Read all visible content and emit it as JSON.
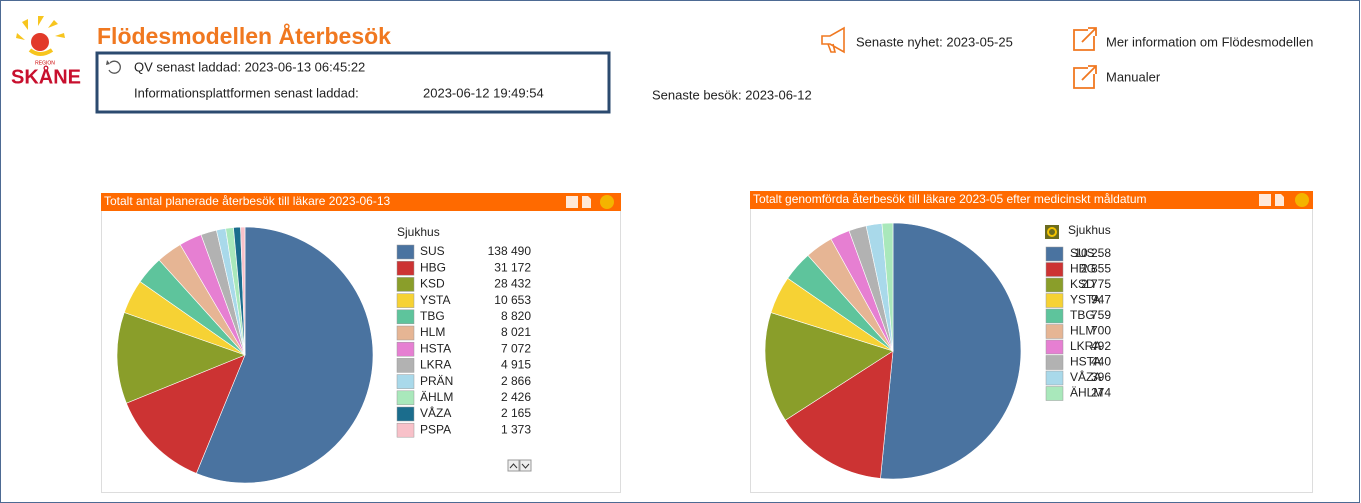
{
  "header": {
    "logo_small": "REGION",
    "logo": "SKÅNE",
    "title": "Flödesmodellen Återbesök",
    "qv_loaded": "QV senast laddad: 2023-06-13 06:45:22",
    "platform_label": "Informationsplattformen senast laddad:",
    "platform_date": "2023-06-12 19:49:54",
    "last_visit": "Senaste besök:  2023-06-12",
    "news": "Senaste nyhet: 2023-05-25",
    "more_info": "Mer information om Flödesmodellen",
    "manuals": "Manualer"
  },
  "chart_data": [
    {
      "type": "pie",
      "title": "Totalt antal planerade återbesök till läkare 2023-06-13",
      "legend_title": "Sjukhus",
      "categories": [
        "SUS",
        "HBG",
        "KSD",
        "YSTA",
        "TBG",
        "HLM",
        "HSTA",
        "LKRA",
        "PRÄN",
        "ÄHLM",
        "VÅZA",
        "PSPA"
      ],
      "values": [
        138490,
        31172,
        28432,
        10653,
        8820,
        8021,
        7072,
        4915,
        2866,
        2426,
        2165,
        1373
      ],
      "value_labels": [
        "138 490",
        "31 172",
        "28 432",
        "10 653",
        "8 820",
        "8 021",
        "7 072",
        "4 915",
        "2 866",
        "2 426",
        "2 165",
        "1 373"
      ],
      "colors": [
        "#4a73a0",
        "#cc3333",
        "#8a9e2a",
        "#f6d234",
        "#5ec49c",
        "#e6b594",
        "#e67fd2",
        "#b2b2b2",
        "#a9d9ea",
        "#a9e8bb",
        "#1b6d8d",
        "#f8c1c9"
      ]
    },
    {
      "type": "pie",
      "title": "Totalt genomförda återbesök till läkare 2023-05 efter medicinskt måldatum",
      "legend_title": "Sjukhus",
      "categories": [
        "SUS",
        "HBG",
        "KSD",
        "YSTA",
        "TBG",
        "HLM",
        "LKRA",
        "HSTA",
        "VÅZA",
        "ÄHLM"
      ],
      "values": [
        10258,
        2855,
        2775,
        947,
        759,
        700,
        492,
        440,
        396,
        274
      ],
      "value_labels": [
        "10 258",
        "2 855",
        "2 775",
        "947",
        "759",
        "700",
        "492",
        "440",
        "396",
        "274"
      ],
      "colors": [
        "#4a73a0",
        "#cc3333",
        "#8a9e2a",
        "#f6d234",
        "#5ec49c",
        "#e6b594",
        "#e67fd2",
        "#b2b2b2",
        "#a9d9ea",
        "#a9e8bb"
      ]
    }
  ]
}
